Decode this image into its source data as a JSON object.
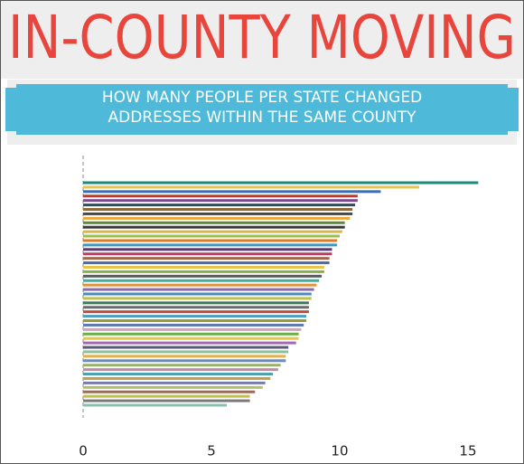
{
  "chart_data": {
    "type": "hbar",
    "title": "IN-COUNTY MOVING",
    "subtitle": [
      "HOW MANY PEOPLE PER STATE CHANGED",
      "ADDRESSES WITHIN THE SAME COUNTY"
    ],
    "values": [
      15.4,
      13.1,
      11.6,
      10.7,
      10.7,
      10.6,
      10.5,
      10.5,
      10.4,
      10.2,
      10.2,
      10.1,
      10.0,
      9.9,
      9.9,
      9.7,
      9.7,
      9.6,
      9.6,
      9.4,
      9.4,
      9.3,
      9.2,
      9.1,
      9.0,
      8.9,
      8.9,
      8.8,
      8.8,
      8.8,
      8.7,
      8.7,
      8.6,
      8.5,
      8.4,
      8.4,
      8.3,
      8.0,
      8.0,
      7.9,
      7.9,
      7.7,
      7.6,
      7.4,
      7.3,
      7.1,
      7.0,
      6.7,
      6.5,
      6.5,
      5.6
    ],
    "colors": [
      "#1b8a78",
      "#e6c64a",
      "#3d6eb4",
      "#c0392b",
      "#7b4b8c",
      "#2f4f5f",
      "#8a6a3a",
      "#4a4a4a",
      "#e8a83a",
      "#5a8a3a",
      "#3a3a3a",
      "#d4b84a",
      "#9bbf4a",
      "#e07a2a",
      "#3a9ac0",
      "#5a3a6a",
      "#c03a6a",
      "#a06a4a",
      "#4a6ab0",
      "#e6c64a",
      "#8ab04a",
      "#5a5a5a",
      "#3ab0a0",
      "#e0943a",
      "#8a6ab0",
      "#4a8ac0",
      "#c0c04a",
      "#3a7a5a",
      "#6a6a6a",
      "#c04a3a",
      "#4aa0c0",
      "#9a9a3a",
      "#5a7ab0",
      "#d4a0c0",
      "#6ab04a",
      "#e6c64a",
      "#a06ab0",
      "#5a5a7a",
      "#8ac0a0",
      "#e0b04a",
      "#6a8ac0",
      "#9ab06a",
      "#c08aa0",
      "#4aa0b0",
      "#c0a04a",
      "#7a7ab0",
      "#b0c06a",
      "#9a6a5a",
      "#c0c04a",
      "#7a7a7a",
      "#8ac0b0"
    ],
    "xlim": [
      0,
      15.6
    ],
    "xticks": [
      0,
      5,
      10,
      15
    ],
    "grid": false
  }
}
